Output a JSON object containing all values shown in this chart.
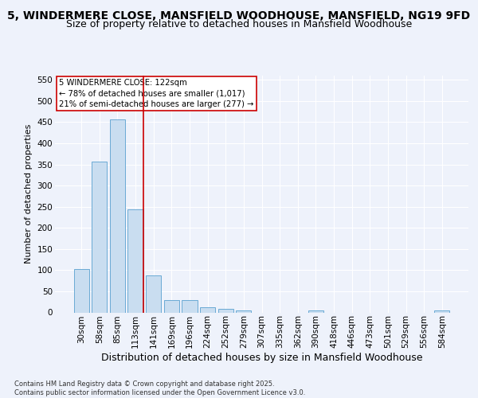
{
  "title": "5, WINDERMERE CLOSE, MANSFIELD WOODHOUSE, MANSFIELD, NG19 9FD",
  "subtitle": "Size of property relative to detached houses in Mansfield Woodhouse",
  "xlabel": "Distribution of detached houses by size in Mansfield Woodhouse",
  "ylabel": "Number of detached properties",
  "categories": [
    "30sqm",
    "58sqm",
    "85sqm",
    "113sqm",
    "141sqm",
    "169sqm",
    "196sqm",
    "224sqm",
    "252sqm",
    "279sqm",
    "307sqm",
    "335sqm",
    "362sqm",
    "390sqm",
    "418sqm",
    "446sqm",
    "473sqm",
    "501sqm",
    "529sqm",
    "556sqm",
    "584sqm"
  ],
  "values": [
    103,
    356,
    456,
    243,
    88,
    30,
    30,
    13,
    8,
    5,
    0,
    0,
    0,
    4,
    0,
    0,
    0,
    0,
    0,
    0,
    4
  ],
  "bar_color": "#c9ddf0",
  "bar_edge_color": "#6aaad4",
  "red_line_index": 3,
  "annotation_text": "5 WINDERMERE CLOSE: 122sqm\n← 78% of detached houses are smaller (1,017)\n21% of semi-detached houses are larger (277) →",
  "annotation_box_color": "#ffffff",
  "annotation_box_edge": "#cc0000",
  "red_line_color": "#cc0000",
  "ylim": [
    0,
    560
  ],
  "yticks": [
    0,
    50,
    100,
    150,
    200,
    250,
    300,
    350,
    400,
    450,
    500,
    550
  ],
  "title_fontsize": 10,
  "subtitle_fontsize": 9,
  "xlabel_fontsize": 9,
  "ylabel_fontsize": 8,
  "tick_fontsize": 7.5,
  "footer_text": "Contains HM Land Registry data © Crown copyright and database right 2025.\nContains public sector information licensed under the Open Government Licence v3.0.",
  "background_color": "#eef2fb",
  "plot_bg_color": "#eef2fb"
}
